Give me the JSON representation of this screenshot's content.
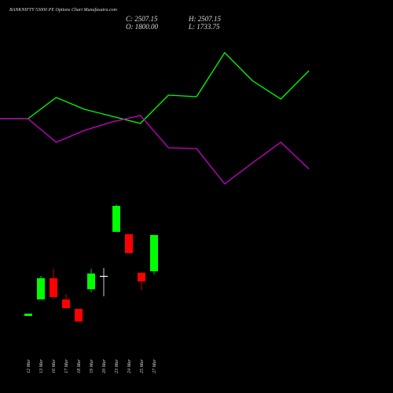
{
  "chart_data": [
    {
      "type": "line",
      "x": [
        0,
        1,
        2,
        3,
        4,
        5,
        6,
        7,
        8,
        9,
        10,
        11
      ],
      "xlim": [
        0,
        11
      ],
      "ylim": [
        0,
        100
      ],
      "series": [
        {
          "color": "#00ff00",
          "values": [
            49.5,
            49.5,
            63,
            55.5,
            51,
            46.5,
            64.5,
            63.5,
            91.5,
            73.5,
            62,
            80
          ]
        },
        {
          "color": "#cc00cc",
          "values": [
            49.5,
            49.5,
            34.5,
            42,
            47.5,
            51.5,
            31,
            30.5,
            8,
            21.5,
            34.5,
            17.5
          ]
        }
      ]
    },
    {
      "type": "candlestick",
      "title": "BANKNIFTY 53000 PE Options Chart Munafasutra.com",
      "ohlc_labels": [
        "C: 2507.15",
        "H: 2507.15",
        "O: 1800.00",
        "L: 1733.75"
      ],
      "categories": [
        "12 Mar",
        "13 Mar",
        "16 Mar",
        "17 Mar",
        "18 Mar",
        "19 Mar",
        "20 Mar",
        "23 Mar",
        "24 Mar",
        "25 Mar",
        "27 Mar"
      ],
      "open": [
        924,
        1247,
        1662,
        1247,
        1062,
        1446,
        1708,
        2569,
        2522,
        1769,
        1800.0
      ],
      "high": [
        970,
        1708,
        1846,
        1354,
        1062,
        1846,
        1861,
        3106,
        2522,
        1769,
        2507.15
      ],
      "low": [
        924,
        1247,
        1293,
        1078,
        816,
        1385,
        1308,
        2569,
        2154,
        1431,
        1733.75
      ],
      "close": [
        970,
        1662,
        1293,
        1078,
        816,
        1754,
        1708,
        3076,
        2154,
        1600,
        2507.15
      ],
      "ylim": [
        647,
        3260
      ],
      "up_color": "#00ff00",
      "down_color": "#ff0000",
      "flat_color": "#ffffff"
    }
  ]
}
